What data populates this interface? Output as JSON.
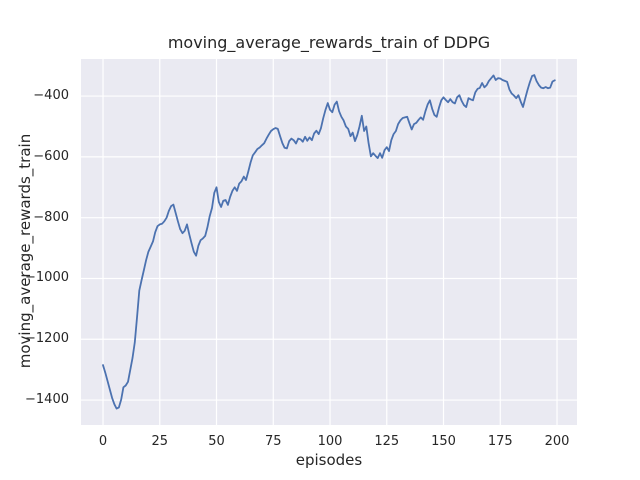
{
  "figure": {
    "background": "#ffffff"
  },
  "chart_data": {
    "type": "line",
    "title": "moving_average_rewards_train of DDPG",
    "xlabel": "episodes",
    "ylabel": "moving_average_rewards_train",
    "x_start": 0,
    "x_step": 1,
    "values": [
      -1285,
      -1310,
      -1338,
      -1365,
      -1393,
      -1414,
      -1428,
      -1424,
      -1398,
      -1358,
      -1352,
      -1340,
      -1300,
      -1262,
      -1210,
      -1125,
      -1040,
      -1005,
      -972,
      -940,
      -912,
      -895,
      -878,
      -848,
      -828,
      -822,
      -820,
      -812,
      -800,
      -778,
      -762,
      -757,
      -785,
      -812,
      -838,
      -851,
      -843,
      -822,
      -855,
      -885,
      -912,
      -925,
      -892,
      -874,
      -868,
      -860,
      -832,
      -795,
      -768,
      -718,
      -700,
      -748,
      -765,
      -744,
      -742,
      -758,
      -732,
      -712,
      -700,
      -712,
      -688,
      -680,
      -665,
      -676,
      -648,
      -618,
      -595,
      -585,
      -574,
      -569,
      -562,
      -555,
      -540,
      -527,
      -515,
      -509,
      -505,
      -508,
      -532,
      -555,
      -570,
      -572,
      -548,
      -540,
      -545,
      -556,
      -540,
      -542,
      -550,
      -534,
      -547,
      -536,
      -545,
      -523,
      -514,
      -525,
      -506,
      -473,
      -445,
      -423,
      -445,
      -453,
      -428,
      -418,
      -450,
      -468,
      -480,
      -500,
      -508,
      -532,
      -520,
      -548,
      -528,
      -500,
      -465,
      -515,
      -500,
      -555,
      -598,
      -588,
      -596,
      -604,
      -588,
      -603,
      -578,
      -568,
      -581,
      -545,
      -525,
      -515,
      -492,
      -480,
      -472,
      -470,
      -468,
      -490,
      -510,
      -492,
      -488,
      -478,
      -470,
      -478,
      -450,
      -428,
      -414,
      -442,
      -462,
      -468,
      -438,
      -414,
      -404,
      -413,
      -420,
      -410,
      -420,
      -424,
      -404,
      -397,
      -416,
      -430,
      -436,
      -407,
      -411,
      -414,
      -388,
      -376,
      -373,
      -357,
      -371,
      -364,
      -350,
      -341,
      -332,
      -347,
      -341,
      -342,
      -347,
      -350,
      -353,
      -378,
      -391,
      -398,
      -407,
      -397,
      -418,
      -436,
      -408,
      -380,
      -355,
      -334,
      -331,
      -351,
      -364,
      -372,
      -374,
      -370,
      -374,
      -372,
      -352,
      -348
    ],
    "x_ticks": [
      0,
      25,
      50,
      75,
      100,
      125,
      150,
      175,
      200
    ],
    "x_tick_labels": [
      "0",
      "25",
      "50",
      "75",
      "100",
      "125",
      "150",
      "175",
      "200"
    ],
    "y_ticks": [
      -400,
      -600,
      -800,
      -1000,
      -1200,
      -1400
    ],
    "y_tick_labels": [
      "−400",
      "−600",
      "−800",
      "−1000",
      "−1200",
      "−1400"
    ],
    "xlim": [
      -9.7,
      208.8
    ],
    "ylim": [
      -1482,
      -278
    ],
    "grid": true,
    "legend_position": "none",
    "style": {
      "line_color": "#4C72B0",
      "line_width": 1.8,
      "plot_bg": "#EAEAF2",
      "grid_color": "#FFFFFF",
      "text_color": "#262626"
    }
  }
}
